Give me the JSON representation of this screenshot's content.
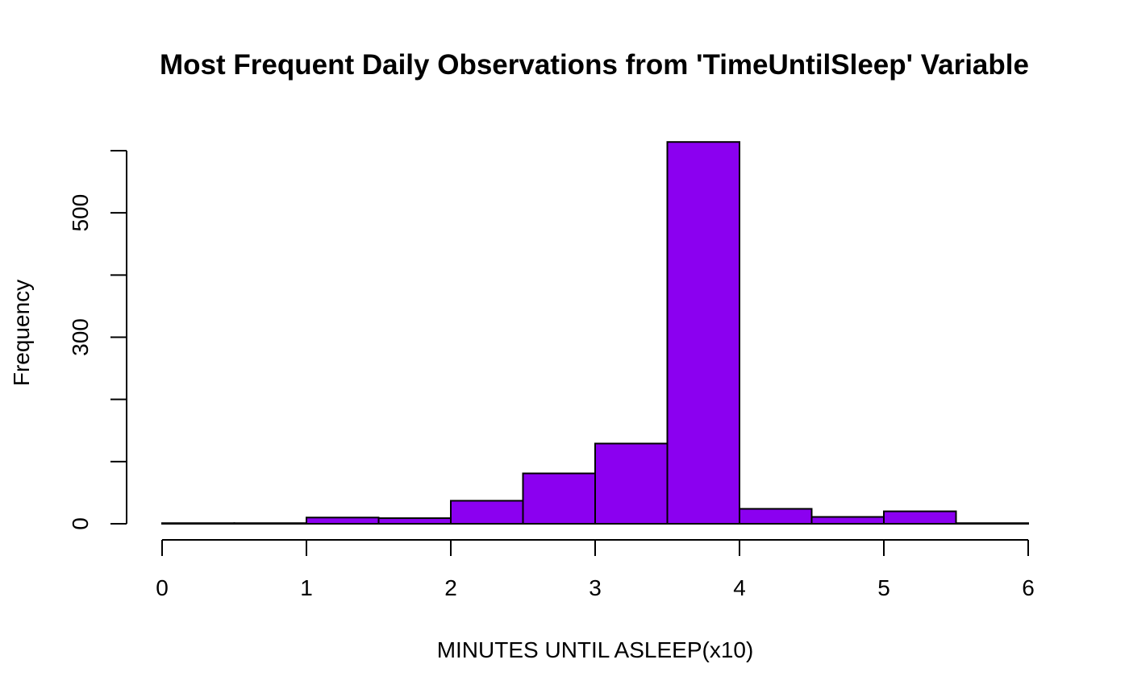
{
  "chart_data": {
    "type": "histogram",
    "title": "Most Frequent Daily Observations from 'TimeUntilSleep' Variable",
    "xlabel": "MINUTES UNTIL ASLEEP(x10)",
    "ylabel": "Frequency",
    "bar_color": "#8B00F0",
    "xlim": [
      0,
      6
    ],
    "ylim": [
      0,
      600
    ],
    "x_ticks": [
      0,
      1,
      2,
      3,
      4,
      5,
      6
    ],
    "y_ticks": [
      0,
      100,
      200,
      300,
      400,
      500,
      600
    ],
    "y_tick_labels": [
      "0",
      "",
      "",
      "300",
      "",
      "500",
      ""
    ],
    "bins": [
      {
        "from": 0.0,
        "to": 0.5,
        "count": 1
      },
      {
        "from": 0.5,
        "to": 1.0,
        "count": 1
      },
      {
        "from": 1.0,
        "to": 1.5,
        "count": 10
      },
      {
        "from": 1.5,
        "to": 2.0,
        "count": 9
      },
      {
        "from": 2.0,
        "to": 2.5,
        "count": 37
      },
      {
        "from": 2.5,
        "to": 3.0,
        "count": 81
      },
      {
        "from": 3.0,
        "to": 3.5,
        "count": 129
      },
      {
        "from": 3.5,
        "to": 4.0,
        "count": 614
      },
      {
        "from": 4.0,
        "to": 4.5,
        "count": 24
      },
      {
        "from": 4.5,
        "to": 5.0,
        "count": 11
      },
      {
        "from": 5.0,
        "to": 5.5,
        "count": 20
      },
      {
        "from": 5.5,
        "to": 6.0,
        "count": 1
      }
    ]
  }
}
